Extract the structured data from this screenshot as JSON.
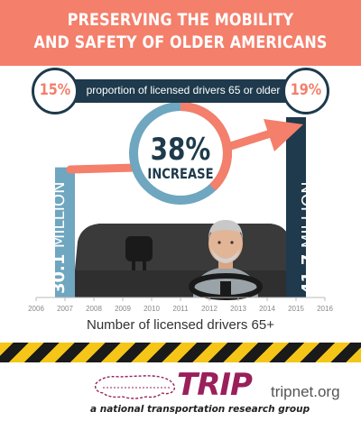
{
  "header": {
    "line1": "PRESERVING THE MOBILITY",
    "line2": "AND SAFETY OF OLDER AMERICANS"
  },
  "proportion": {
    "label": "proportion of licensed drivers 65 or older",
    "start": "15%",
    "end": "19%"
  },
  "increase": {
    "percent": "38%",
    "word": "INCREASE",
    "fraction": 0.38
  },
  "chart_data": {
    "type": "bar",
    "xlabel": "Number of licensed drivers 65+",
    "ylabel": "",
    "title": "",
    "x_ticks": [
      "2006",
      "2007",
      "2008",
      "2009",
      "2010",
      "2011",
      "2012",
      "2013",
      "2014",
      "2015",
      "2016"
    ],
    "bars": [
      {
        "year": "2007",
        "value": 30.1,
        "value_label": "30.1",
        "unit": "MILLION",
        "color": "#6fa6c0"
      },
      {
        "year": "2015",
        "value": 41.7,
        "value_label": "41.7",
        "unit": "MILLION",
        "color": "#1e3a4c"
      }
    ],
    "ylim": [
      0,
      41.7
    ]
  },
  "colors": {
    "banner": "#f47f6b",
    "navy": "#1e3a4c",
    "light_blue": "#6fa6c0",
    "coral": "#f47f6b",
    "stripe_yellow": "#f5c518",
    "logo": "#9a1f5b"
  },
  "footer": {
    "logo_text": "TRIP",
    "tagline": "a national transportation research group",
    "site": "tripnet.org"
  }
}
